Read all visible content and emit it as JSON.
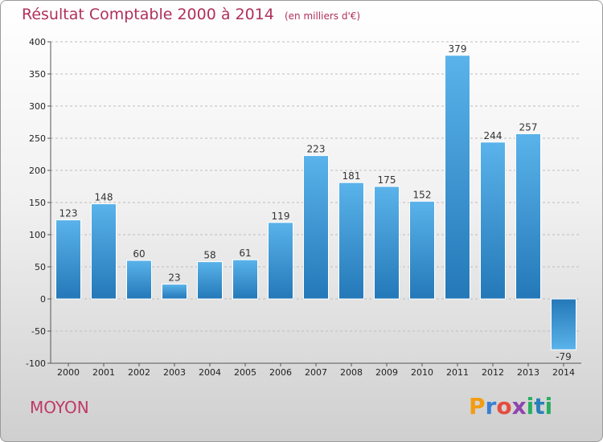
{
  "header": {
    "title": "Résultat Comptable 2000 à 2014",
    "unit": "(en milliers d'€)"
  },
  "commune": "MOYON",
  "logo": {
    "letters": [
      "P",
      "r",
      "o",
      "x",
      "i",
      "t",
      "i"
    ],
    "colors": [
      "#f39c12",
      "#3a7fd5",
      "#e74c3c",
      "#8e44ad",
      "#27ae60",
      "#2980b9",
      "#27ae60"
    ]
  },
  "colors": {
    "bar_light": "#5ab3ea",
    "bar_dark": "#2478b8",
    "title": "#b0305a"
  },
  "chart_data": {
    "type": "bar",
    "categories": [
      "2000",
      "2001",
      "2002",
      "2003",
      "2004",
      "2005",
      "2006",
      "2007",
      "2008",
      "2009",
      "2010",
      "2011",
      "2012",
      "2013",
      "2014"
    ],
    "values": [
      123,
      148,
      60,
      23,
      58,
      61,
      119,
      223,
      181,
      175,
      152,
      379,
      244,
      257,
      -79
    ],
    "ylim": [
      -100,
      400
    ],
    "yticks": [
      -100,
      -50,
      0,
      50,
      100,
      150,
      200,
      250,
      300,
      350,
      400
    ],
    "grid": true
  }
}
